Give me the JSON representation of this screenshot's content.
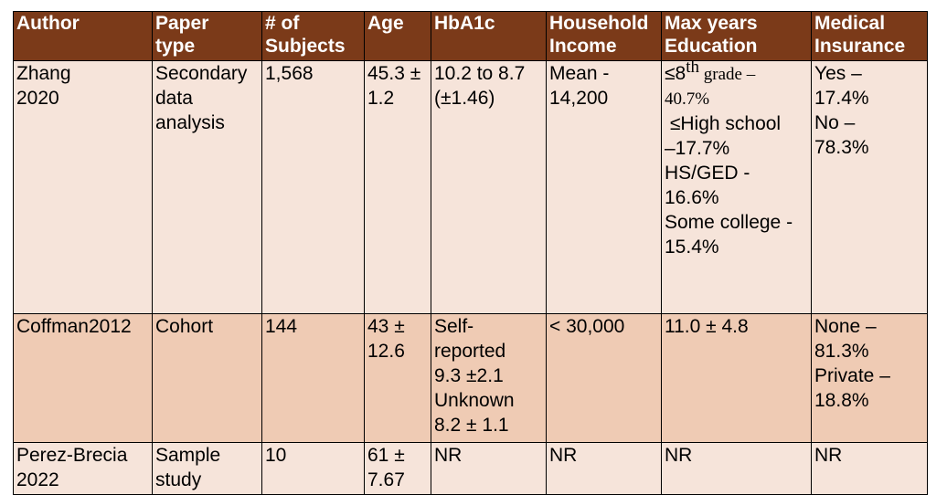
{
  "headers": {
    "author": [
      "Author"
    ],
    "paper_type": [
      "Paper",
      "type"
    ],
    "subjects": [
      "# of",
      "Subjects"
    ],
    "age": [
      "Age"
    ],
    "hba1c": [
      "HbA1c"
    ],
    "income": [
      "Household",
      "Income"
    ],
    "education": [
      "Max years",
      "Education"
    ],
    "insurance": [
      "Medical",
      "Insurance"
    ]
  },
  "rows": [
    {
      "author": [
        "Zhang",
        "2020"
      ],
      "paper_type": [
        "Secondary",
        "data",
        "analysis"
      ],
      "subjects": "1,568",
      "age": [
        "45.3 ±",
        "1.2"
      ],
      "hba1c": [
        "10.2 to 8.7",
        "(±1.46)"
      ],
      "income": [
        "Mean -",
        "14,200"
      ],
      "education": {
        "first_prefix": "≤8",
        "first_sup": "th",
        "first_suffix": " grade –",
        "lines": [
          "40.7%",
          " ≤High school",
          "–17.7%",
          "HS/GED -",
          "16.6%",
          "Some college -",
          "15.4%"
        ]
      },
      "insurance": [
        "Yes –",
        "17.4%",
        "No –",
        "78.3%"
      ]
    },
    {
      "author": [
        "Coffman2012"
      ],
      "paper_type": [
        "Cohort"
      ],
      "subjects": "144",
      "age": [
        "43 ±",
        "12.6"
      ],
      "hba1c": [
        "Self-",
        "reported",
        "9.3 ±2.1",
        "Unknown",
        "8.2 ± 1.1"
      ],
      "income": [
        "< 30,000"
      ],
      "education": [
        "11.0 ± 4.8"
      ],
      "insurance": [
        "None –",
        "81.3%",
        "Private –",
        "18.8%"
      ]
    },
    {
      "author": [
        "Perez-Brecia",
        "2022"
      ],
      "paper_type": [
        "Sample",
        "study"
      ],
      "subjects": "10",
      "age": [
        "61 ±",
        "7.67"
      ],
      "hba1c": [
        "NR"
      ],
      "income": [
        "NR"
      ],
      "education": [
        "NR"
      ],
      "insurance": [
        "NR"
      ]
    }
  ]
}
